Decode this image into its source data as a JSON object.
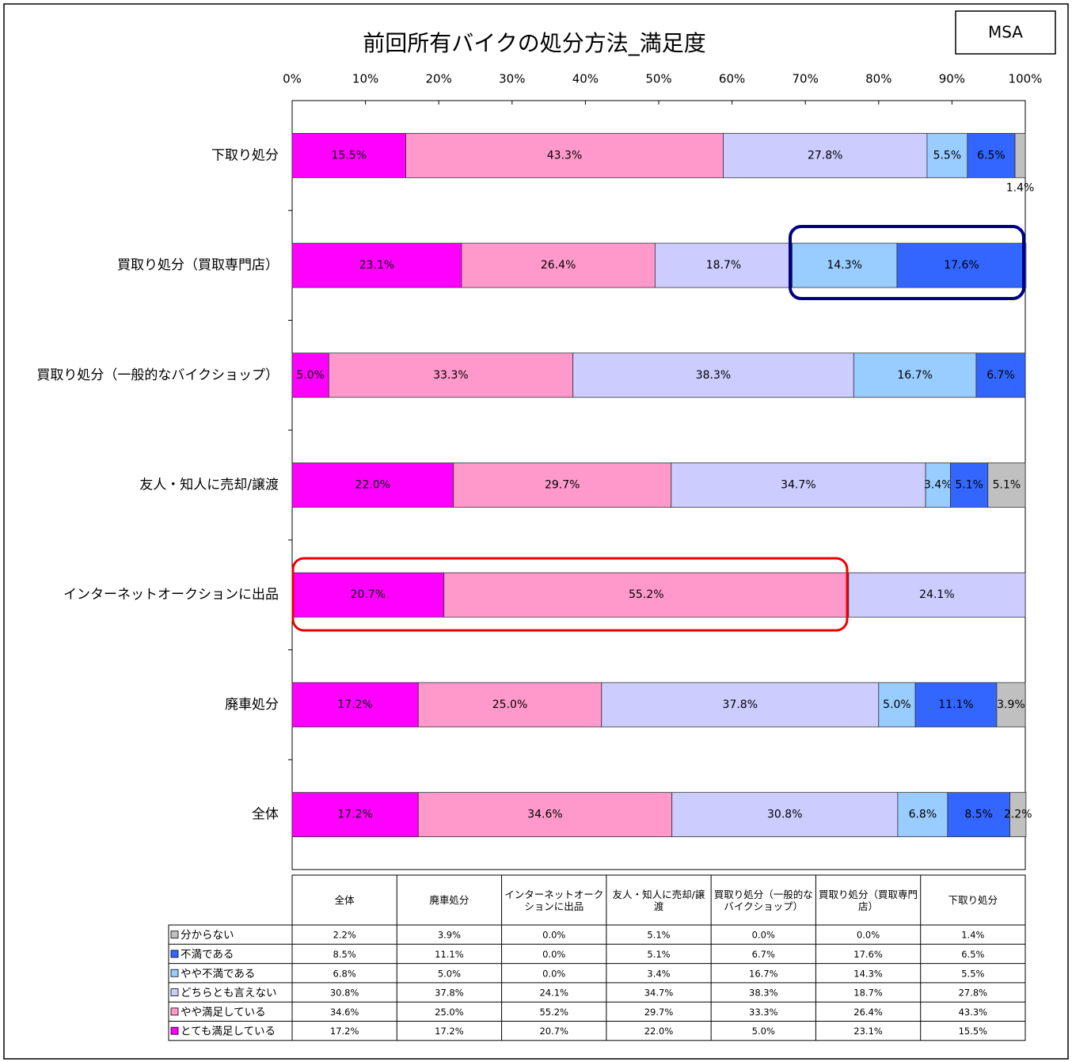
{
  "chart_data": {
    "type": "stacked_barh",
    "title": "前回所有バイクの処分方法_満足度",
    "annotation": "MSA",
    "categories": [
      "下取り処分",
      "買取り処分（買取専門店）",
      "買取り処分（一般的なバイクショップ）",
      "友人・知人に売却/譲渡",
      "インターネットオークションに出品",
      "廃車処分",
      "全体"
    ],
    "series": [
      {
        "name": "とても満足している",
        "color": "#ff00ff",
        "values": [
          15.5,
          23.1,
          5.0,
          22.0,
          20.7,
          17.2,
          17.2
        ],
        "value_labels": [
          "15.5%",
          "23.1%",
          "5.0%",
          "22.0%",
          "20.7%",
          "17.2%",
          "17.2%"
        ]
      },
      {
        "name": "やや満足している",
        "color": "#ff99cc",
        "values": [
          43.3,
          26.4,
          33.3,
          29.7,
          55.2,
          25.0,
          34.6
        ],
        "value_labels": [
          "43.3%",
          "26.4%",
          "33.3%",
          "29.7%",
          "55.2%",
          "25.0%",
          "34.6%"
        ]
      },
      {
        "name": "どちらとも言えない",
        "color": "#ccccff",
        "values": [
          27.8,
          18.7,
          38.3,
          34.7,
          24.1,
          37.8,
          30.8
        ],
        "value_labels": [
          "27.8%",
          "18.7%",
          "38.3%",
          "34.7%",
          "24.1%",
          "37.8%",
          "30.8%"
        ]
      },
      {
        "name": "やや不満である",
        "color": "#99ccff",
        "values": [
          5.5,
          14.3,
          16.7,
          3.4,
          0.0,
          5.0,
          6.8
        ],
        "value_labels": [
          "5.5%",
          "14.3%",
          "16.7%",
          "3.4%",
          "0.0%",
          "5.0%",
          "6.8%"
        ]
      },
      {
        "name": "不満である",
        "color": "#3366ff",
        "values": [
          6.5,
          17.6,
          6.7,
          5.1,
          0.0,
          11.1,
          8.5
        ],
        "value_labels": [
          "6.5%",
          "17.6%",
          "6.7%",
          "5.1%",
          "0.0%",
          "11.1%",
          "8.5%"
        ]
      },
      {
        "name": "分からない",
        "color": "#c0c0c0",
        "values": [
          1.4,
          0.0,
          0.0,
          5.1,
          0.0,
          3.9,
          2.2
        ],
        "value_labels": [
          "1.4%",
          "0.0%",
          "0.0%",
          "5.1%",
          "0.0%",
          "3.9%",
          "2.2%"
        ]
      }
    ],
    "xlim": [
      0,
      100
    ],
    "xticks": [
      {
        "value": 0,
        "label": "0%"
      },
      {
        "value": 10,
        "label": "10%"
      },
      {
        "value": 20,
        "label": "20%"
      },
      {
        "value": 30,
        "label": "30%"
      },
      {
        "value": 40,
        "label": "40%"
      },
      {
        "value": 50,
        "label": "50%"
      },
      {
        "value": 60,
        "label": "60%"
      },
      {
        "value": 70,
        "label": "70%"
      },
      {
        "value": 80,
        "label": "80%"
      },
      {
        "value": 90,
        "label": "90%"
      },
      {
        "value": 100,
        "label": "100%"
      }
    ],
    "grid": false,
    "data_table": true
  }
}
